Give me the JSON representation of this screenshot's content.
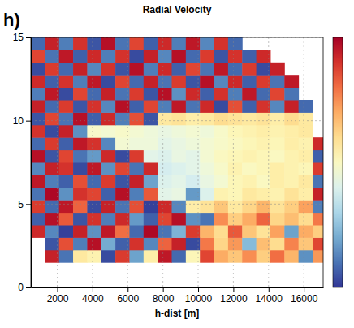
{
  "chart_data": {
    "type": "heatmap",
    "title": "Radial Velocity",
    "panel_label": "h)",
    "x_label": "h-dist [m]",
    "xlim": [
      500,
      17100
    ],
    "ylim": [
      0,
      15
    ],
    "xticks": [
      2000,
      4000,
      6000,
      8000,
      10000,
      12000,
      14000,
      16000
    ],
    "yticks": [
      0,
      5,
      10,
      15
    ],
    "grid": true,
    "zlim": [
      -3,
      3
    ],
    "x_bins": [
      500,
      1300,
      2100,
      2900,
      3700,
      4500,
      5300,
      6100,
      6900,
      7700,
      8500,
      9300,
      10100,
      10900,
      11700,
      12500,
      13300,
      14100,
      14900,
      15700,
      16500,
      17300
    ],
    "y_bins": [
      1.5,
      2.25,
      3.0,
      3.75,
      4.5,
      5.25,
      6.0,
      6.75,
      7.5,
      8.25,
      9.0,
      9.75,
      10.5,
      11.25,
      12.0,
      12.75,
      13.5,
      14.25,
      15.0
    ],
    "values": [
      [
        null,
        2.6,
        -2.4,
        0.4,
        0.2,
        -2.8,
        2.3,
        -1.9,
        0.3,
        2.7,
        -2.5,
        0.1,
        2.2,
        1.2,
        0.9,
        1.5,
        0.8,
        1.8,
        1.1,
        -2.1,
        1.4
      ],
      [
        null,
        -2.7,
        2.1,
        -2.3,
        2.8,
        -1.8,
        -2.6,
        2.4,
        -2.2,
        1.9,
        2.6,
        -2.8,
        1.7,
        0.7,
        1.4,
        -1.6,
        1.0,
        0.6,
        1.6,
        0.9,
        2.2
      ],
      [
        2.5,
        -2.2,
        -2.9,
        2.6,
        -2.1,
        2.7,
        1.8,
        -2.5,
        2.9,
        -2.4,
        -1.7,
        2.3,
        1.1,
        0.6,
        2.0,
        0.9,
        0.5,
        1.3,
        -1.9,
        1.2,
        0.8
      ],
      [
        -2.6,
        2.8,
        2.0,
        -2.7,
        2.4,
        -2.3,
        2.5,
        -2.0,
        -2.6,
        2.2,
        2.8,
        -2.1,
        -2.4,
        1.5,
        0.8,
        1.2,
        1.9,
        0.7,
        1.0,
        0.6,
        1.7
      ],
      [
        2.3,
        -2.5,
        2.7,
        1.9,
        -2.8,
        2.6,
        -2.4,
        2.1,
        -2.9,
        2.5,
        -2.2,
        0.3,
        0.5,
        0.9,
        0.4,
        0.7,
        1.1,
        0.5,
        0.8,
        1.3,
        -2.3
      ],
      [
        -2.4,
        2.9,
        -2.1,
        2.4,
        2.2,
        -2.6,
        2.8,
        -2.3,
        2.0,
        -0.5,
        -0.4,
        -2.0,
        -0.6,
        0.2,
        0.1,
        0.4,
        0.3,
        0.2,
        0.5,
        0.3,
        2.6
      ],
      [
        2.7,
        -2.3,
        -2.6,
        2.1,
        -2.5,
        2.3,
        -2.7,
        2.6,
        -1.9,
        -0.6,
        -0.5,
        -0.7,
        -0.4,
        -0.2,
        0.1,
        0.2,
        0.0,
        0.3,
        0.2,
        0.4,
        -2.4
      ],
      [
        -2.2,
        2.6,
        2.4,
        -2.8,
        2.7,
        -2.1,
        2.2,
        -2.4,
        2.5,
        -0.7,
        -0.6,
        -0.5,
        -0.3,
        -0.1,
        0.2,
        0.0,
        0.1,
        0.3,
        0.2,
        0.1,
        2.3
      ],
      [
        2.8,
        -2.7,
        2.2,
        -2.4,
        -2.0,
        2.5,
        -2.8,
        2.3,
        -0.5,
        -0.6,
        -0.4,
        -0.5,
        -0.2,
        0.0,
        0.1,
        0.2,
        0.1,
        0.0,
        0.2,
        0.3,
        -2.6
      ],
      [
        -2.5,
        2.3,
        -2.6,
        2.7,
        2.4,
        -2.2,
        -0.2,
        -0.3,
        -0.3,
        -0.5,
        -0.4,
        -0.3,
        -0.2,
        -0.1,
        0.0,
        0.1,
        0.2,
        0.1,
        0.3,
        0.2,
        2.5
      ],
      [
        2.4,
        -2.8,
        2.6,
        -2.1,
        -0.1,
        -0.2,
        -0.1,
        -0.2,
        -0.3,
        -0.4,
        -0.3,
        -0.2,
        -0.3,
        -0.1,
        0.1,
        0.2,
        0.3,
        0.2,
        0.3,
        0.4,
        null
      ],
      [
        -2.7,
        2.2,
        -2.4,
        2.8,
        -2.6,
        2.5,
        -2.3,
        2.1,
        -2.7,
        0.4,
        0.5,
        0.3,
        0.4,
        0.6,
        0.5,
        0.4,
        0.5,
        0.3,
        0.6,
        0.4,
        null
      ],
      [
        2.6,
        -2.5,
        2.3,
        -2.7,
        2.4,
        -2.2,
        2.8,
        -2.6,
        2.2,
        -2.3,
        2.7,
        -2.4,
        2.5,
        -2.8,
        2.1,
        -2.6,
        2.4,
        -2.2,
        2.6,
        -2.5,
        null
      ],
      [
        -2.3,
        2.7,
        -2.8,
        2.2,
        -2.5,
        2.6,
        -2.4,
        2.3,
        -2.7,
        2.8,
        -2.1,
        2.5,
        -2.6,
        2.4,
        -2.3,
        2.7,
        -2.5,
        2.2,
        -2.4,
        null,
        null
      ],
      [
        2.5,
        -2.6,
        2.4,
        -2.3,
        2.7,
        -2.8,
        2.2,
        -2.5,
        2.6,
        -2.4,
        2.3,
        -2.7,
        2.8,
        -2.2,
        2.5,
        -2.6,
        2.3,
        -2.4,
        2.7,
        null,
        null
      ],
      [
        -2.8,
        2.3,
        -2.5,
        2.6,
        -2.2,
        2.4,
        -2.7,
        2.8,
        -2.3,
        2.5,
        -2.6,
        2.2,
        -2.4,
        2.7,
        -2.5,
        2.3,
        -2.8,
        2.6,
        null,
        null,
        null
      ],
      [
        2.2,
        -2.4,
        2.7,
        -2.6,
        2.5,
        -2.3,
        2.4,
        -2.8,
        2.6,
        -2.2,
        2.8,
        -2.5,
        2.3,
        -2.7,
        2.4,
        -2.6,
        2.5,
        null,
        null,
        null,
        null
      ],
      [
        -2.5,
        2.6,
        -2.3,
        2.4,
        -2.7,
        2.8,
        -2.4,
        2.2,
        -2.6,
        2.5,
        -2.3,
        2.7,
        -2.2,
        2.4,
        -2.5,
        null,
        null,
        null,
        null,
        null,
        null
      ]
    ]
  }
}
